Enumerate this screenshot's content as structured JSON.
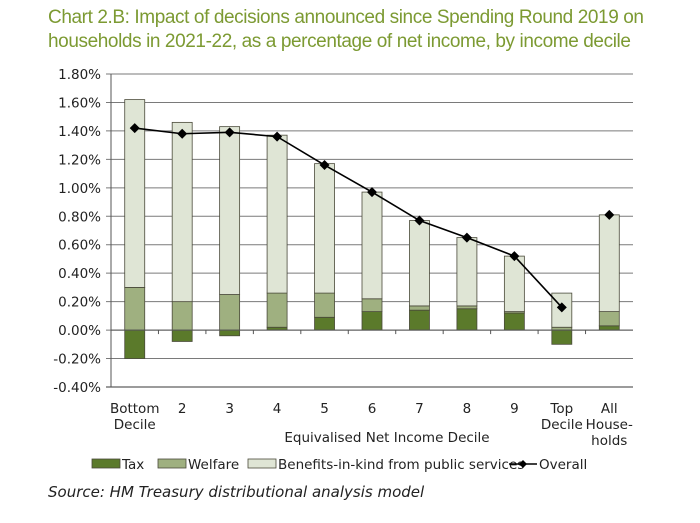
{
  "chart_data": {
    "type": "bar",
    "stacked": true,
    "title": "Chart 2.B: Impact of decisions announced since Spending Round 2019 on households in 2021-22, as a percentage of net income, by income decile",
    "title_lines": [
      "Chart 2.B: Impact of decisions announced since Spending Round 2019 on",
      "households in 2021-22, as a percentage of net income, by income decile"
    ],
    "xlabel": "Equivalised Net Income Decile",
    "ylabel": "",
    "ylim": [
      -0.4,
      1.8
    ],
    "yticks": [
      1.8,
      1.6,
      1.4,
      1.2,
      1.0,
      0.8,
      0.6,
      0.4,
      0.2,
      0.0,
      -0.2,
      -0.4
    ],
    "ytick_labels": [
      "1.80%",
      "1.60%",
      "1.40%",
      "1.20%",
      "1.00%",
      "0.80%",
      "0.60%",
      "0.40%",
      "0.20%",
      "0.00%",
      "-0.20%",
      "-0.40%"
    ],
    "grid": true,
    "categories": [
      [
        "Bottom",
        "Decile"
      ],
      [
        "2"
      ],
      [
        "3"
      ],
      [
        "4"
      ],
      [
        "5"
      ],
      [
        "6"
      ],
      [
        "7"
      ],
      [
        "8"
      ],
      [
        "9"
      ],
      [
        "Top",
        "Decile"
      ],
      [
        "All",
        "House-",
        "holds"
      ]
    ],
    "series": [
      {
        "name": "Tax",
        "kind": "bar",
        "color": "#5b7a2b",
        "values": [
          -0.2,
          -0.08,
          -0.04,
          0.02,
          0.09,
          0.13,
          0.14,
          0.15,
          0.12,
          -0.1,
          0.03
        ]
      },
      {
        "name": "Welfare",
        "kind": "bar",
        "color": "#9fb080",
        "values": [
          0.3,
          0.2,
          0.25,
          0.24,
          0.17,
          0.09,
          0.03,
          0.02,
          0.01,
          0.02,
          0.1
        ]
      },
      {
        "name": "Benefits-in-kind from public services",
        "kind": "bar",
        "color": "#dfe5d5",
        "values": [
          1.32,
          1.26,
          1.18,
          1.11,
          0.91,
          0.75,
          0.6,
          0.48,
          0.39,
          0.24,
          0.68
        ]
      },
      {
        "name": "Overall",
        "kind": "line",
        "color": "#000000",
        "values": [
          1.42,
          1.38,
          1.39,
          1.36,
          1.16,
          0.97,
          0.77,
          0.65,
          0.52,
          0.16,
          0.81
        ]
      }
    ],
    "legend_position": "bottom"
  },
  "source": "Source: HM Treasury distributional analysis model"
}
